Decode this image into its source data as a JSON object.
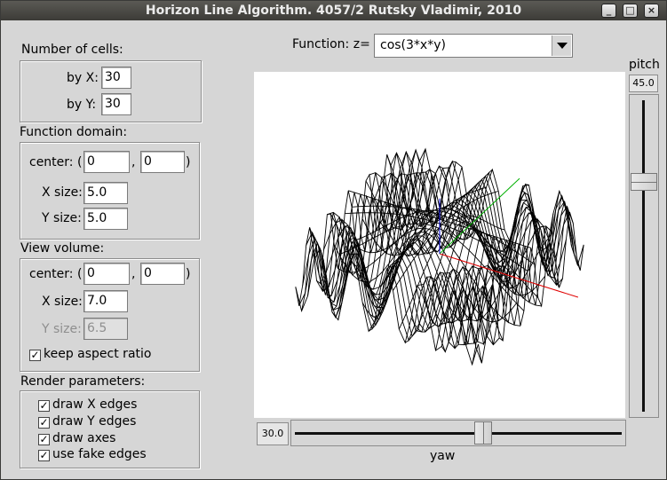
{
  "window": {
    "title": "Horizon Line Algorithm. 4057/2  Rutsky Vladimir, 2010",
    "buttons": {
      "minimize": "_",
      "maximize": "□",
      "close": "×"
    }
  },
  "cells": {
    "title": "Number of cells:",
    "x_label": "by X:",
    "x_value": "30",
    "y_label": "by Y:",
    "y_value": "30"
  },
  "domain": {
    "title": "Function domain:",
    "center_label": "center: (",
    "comma": ",",
    "close_paren": ")",
    "center_x": "0",
    "center_y": "0",
    "xsize_label": "X size:",
    "xsize": "5.0",
    "ysize_label": "Y size:",
    "ysize": "5.0"
  },
  "view": {
    "title": "View volume:",
    "center_label": "center: (",
    "comma": ",",
    "close_paren": ")",
    "center_x": "0",
    "center_y": "0",
    "xsize_label": "X size:",
    "xsize": "7.0",
    "ysize_label": "Y size:",
    "ysize": "6.5",
    "keep_aspect_label": "keep aspect ratio",
    "keep_aspect": true
  },
  "render": {
    "title": "Render parameters:",
    "options": [
      {
        "label": "draw X edges",
        "checked": true
      },
      {
        "label": "draw Y edges",
        "checked": true
      },
      {
        "label": "draw axes",
        "checked": true
      },
      {
        "label": "use fake edges",
        "checked": true
      }
    ]
  },
  "function": {
    "label": "Function: z=",
    "value": "cos(3*x*y)"
  },
  "pitch": {
    "label": "pitch",
    "value": "45.0",
    "level": 0.25
  },
  "yaw": {
    "label": "yaw",
    "value": "30.0",
    "level": 0.58
  },
  "colors": {
    "surface": "#000000",
    "hidden": "#b00040",
    "axis_x": "#e00000",
    "axis_y": "#00b000",
    "axis_z": "#0000d0"
  }
}
